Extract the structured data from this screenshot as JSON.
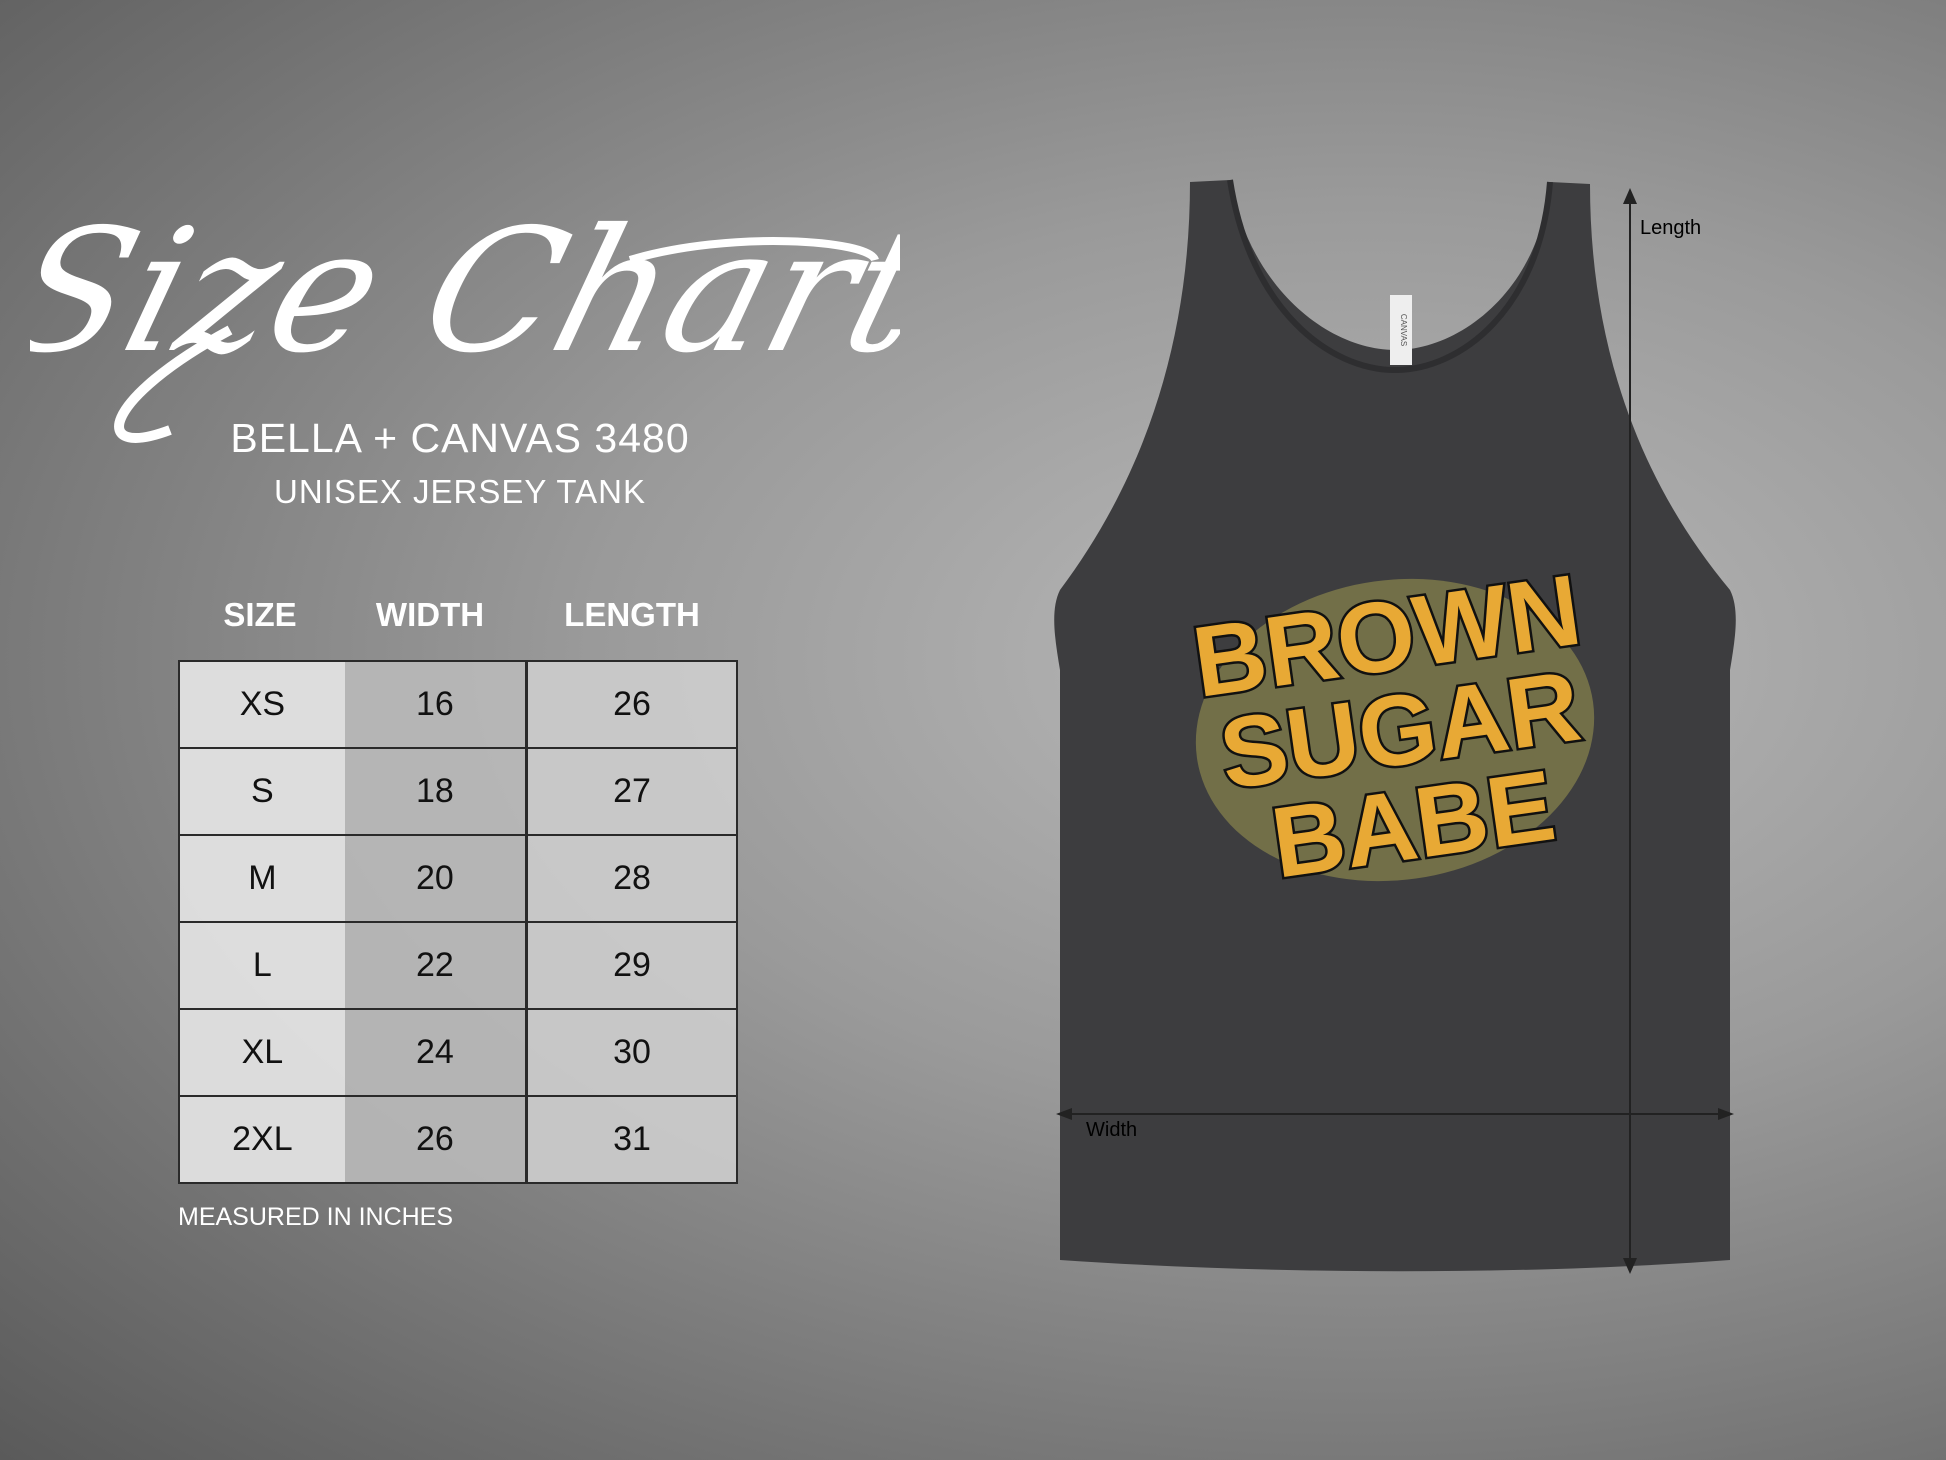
{
  "title": "Size Chart",
  "product": {
    "brand_model": "BELLA + CANVAS 3480",
    "type": "UNISEX JERSEY TANK"
  },
  "table": {
    "headers": [
      "SIZE",
      "WIDTH",
      "LENGTH"
    ],
    "rows": [
      [
        "XS",
        "16",
        "26"
      ],
      [
        "S",
        "18",
        "27"
      ],
      [
        "M",
        "20",
        "28"
      ],
      [
        "L",
        "22",
        "29"
      ],
      [
        "XL",
        "24",
        "30"
      ],
      [
        "2XL",
        "26",
        "31"
      ]
    ]
  },
  "note": "MEASURED IN INCHES",
  "garment": {
    "color": "#3d3d3f",
    "print_lines": [
      "BROWN",
      "SUGAR",
      "BABE"
    ],
    "print_color": "#e8a935",
    "label_text": "CANVAS",
    "length_label": "Length",
    "width_label": "Width"
  }
}
